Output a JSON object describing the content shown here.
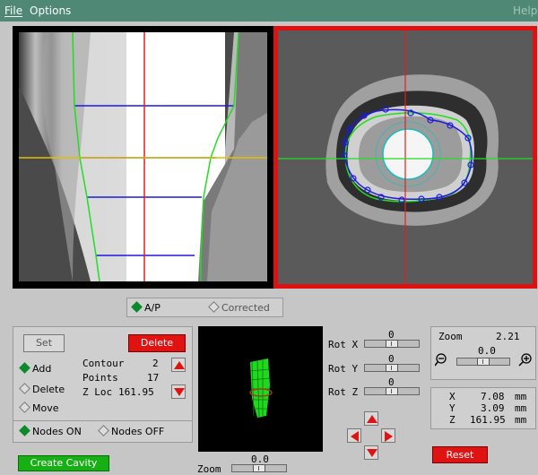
{
  "menu": {
    "file": "File",
    "options": "Options",
    "help": "Help"
  },
  "view_mode": {
    "ap": "A/P",
    "corrected": "Corrected",
    "selected": "ap"
  },
  "contour_panel": {
    "set_label": "Set",
    "delete_label": "Delete",
    "mode_add": "Add",
    "mode_delete": "Delete",
    "mode_move": "Move",
    "contour_label": "Contour",
    "contour_value": "2",
    "points_label": "Points",
    "points_value": "17",
    "zloc_label": "Z Loc",
    "zloc_value": "161.95",
    "nodes_on": "Nodes ON",
    "nodes_off": "Nodes OFF"
  },
  "create_cavity_label": "Create Cavity",
  "preview_zoom": {
    "label": "Zoom",
    "value": "0.0"
  },
  "rotation": {
    "x": {
      "label": "Rot X",
      "value": "0"
    },
    "y": {
      "label": "Rot Y",
      "value": "0"
    },
    "z": {
      "label": "Rot Z",
      "value": "0"
    }
  },
  "zoom_panel": {
    "label": "Zoom",
    "value": "2.21",
    "slider_value": "0.0"
  },
  "coordinates": {
    "x_label": "X",
    "x_value": "7.08",
    "x_unit": "mm",
    "y_label": "Y",
    "y_value": "3.09",
    "y_unit": "mm",
    "z_label": "Z",
    "z_value": "161.95",
    "z_unit": "mm"
  },
  "reset_label": "Reset",
  "colors": {
    "menubar": "#4f8874",
    "active_border": "#e01010",
    "contour": "#1a1ae0",
    "outline": "#22dd22",
    "crosshair": "#e02020",
    "slice_line": "#e0c000",
    "implant_circle": "#10c0c0"
  }
}
